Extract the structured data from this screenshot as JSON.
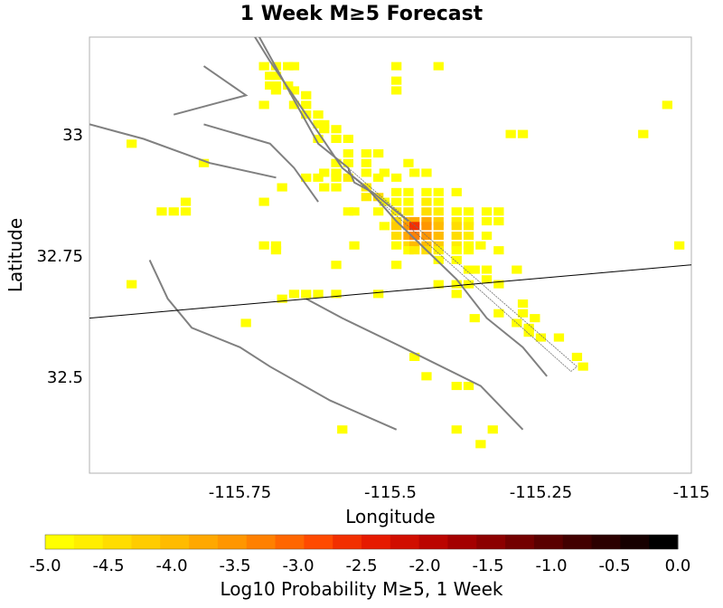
{
  "chart_data": {
    "type": "heatmap",
    "title": "1 Week M≥5 Forecast",
    "xlabel": "Longitude",
    "ylabel": "Latitude",
    "xlim": [
      -116.0,
      -115.0
    ],
    "ylim": [
      32.3,
      33.2
    ],
    "xticks": [
      -115.75,
      -115.5,
      -115.25,
      -115.0
    ],
    "xtick_labels": [
      "-115.75",
      "-115.5",
      "-115.25",
      "-115"
    ],
    "yticks": [
      33.0,
      32.75,
      32.5
    ],
    "ytick_labels": [
      "33",
      "32.75",
      "32.5"
    ],
    "colorbar": {
      "label": "Log10 Probability M≥5, 1 Week",
      "min": -5.0,
      "max": 0.0,
      "ticks": [
        -5.0,
        -4.5,
        -4.0,
        -3.5,
        -3.0,
        -2.5,
        -2.0,
        -1.5,
        -1.0,
        -0.5,
        0.0
      ],
      "tick_labels": [
        "-5.0",
        "-4.5",
        "-4.0",
        "-3.5",
        "-3.0",
        "-2.5",
        "-2.0",
        "-1.5",
        "-1.0",
        "-0.5",
        "0.0"
      ],
      "colors": [
        "#ffff00",
        "#ffee00",
        "#ffdd00",
        "#ffcc00",
        "#ffbb00",
        "#ffa800",
        "#ff9600",
        "#ff8000",
        "#ff6600",
        "#ff4a00",
        "#f22f00",
        "#e61a00",
        "#d10e00",
        "#bb0500",
        "#a40000",
        "#8c0000",
        "#730000",
        "#5a0000",
        "#420000",
        "#2c0000",
        "#160000",
        "#000000"
      ]
    },
    "cell_size_deg": 0.017,
    "cells": [
      [
        -115.71,
        33.14,
        -4.8
      ],
      [
        -115.69,
        33.14,
        -4.8
      ],
      [
        -115.67,
        33.14,
        -4.8
      ],
      [
        -115.66,
        33.14,
        -4.8
      ],
      [
        -115.49,
        33.14,
        -4.9
      ],
      [
        -115.42,
        33.14,
        -4.9
      ],
      [
        -115.7,
        33.12,
        -4.8
      ],
      [
        -115.69,
        33.12,
        -4.8
      ],
      [
        -115.49,
        33.11,
        -4.9
      ],
      [
        -115.49,
        33.09,
        -4.9
      ],
      [
        -115.7,
        33.1,
        -4.8
      ],
      [
        -115.69,
        33.1,
        -4.8
      ],
      [
        -115.67,
        33.1,
        -4.8
      ],
      [
        -115.69,
        33.09,
        -4.8
      ],
      [
        -115.66,
        33.09,
        -4.8
      ],
      [
        -115.64,
        33.08,
        -4.8
      ],
      [
        -115.71,
        33.06,
        -4.9
      ],
      [
        -115.66,
        33.06,
        -4.8
      ],
      [
        -115.64,
        33.06,
        -4.8
      ],
      [
        -115.04,
        33.06,
        -4.9
      ],
      [
        -115.64,
        33.04,
        -4.8
      ],
      [
        -115.62,
        33.04,
        -4.8
      ],
      [
        -115.61,
        33.02,
        -4.8
      ],
      [
        -115.62,
        33.02,
        -4.8
      ],
      [
        -115.59,
        33.01,
        -4.8
      ],
      [
        -115.61,
        33.01,
        -4.8
      ],
      [
        -115.3,
        33.0,
        -4.9
      ],
      [
        -115.28,
        33.0,
        -4.9
      ],
      [
        -115.08,
        33.0,
        -4.9
      ],
      [
        -115.62,
        32.99,
        -4.8
      ],
      [
        -115.59,
        32.99,
        -4.8
      ],
      [
        -115.57,
        32.99,
        -4.8
      ],
      [
        -115.93,
        32.98,
        -4.9
      ],
      [
        -115.57,
        32.96,
        -4.8
      ],
      [
        -115.54,
        32.96,
        -4.8
      ],
      [
        -115.52,
        32.96,
        -4.8
      ],
      [
        -115.59,
        32.94,
        -4.8
      ],
      [
        -115.57,
        32.94,
        -4.8
      ],
      [
        -115.54,
        32.94,
        -4.8
      ],
      [
        -115.47,
        32.94,
        -4.8
      ],
      [
        -115.81,
        32.94,
        -4.9
      ],
      [
        -115.61,
        32.92,
        -4.8
      ],
      [
        -115.59,
        32.92,
        -4.8
      ],
      [
        -115.54,
        32.92,
        -4.8
      ],
      [
        -115.51,
        32.92,
        -4.8
      ],
      [
        -115.44,
        32.92,
        -4.8
      ],
      [
        -115.46,
        32.92,
        -4.8
      ],
      [
        -115.64,
        32.91,
        -4.8
      ],
      [
        -115.62,
        32.91,
        -4.8
      ],
      [
        -115.59,
        32.91,
        -4.8
      ],
      [
        -115.57,
        32.91,
        -4.7
      ],
      [
        -115.52,
        32.91,
        -4.8
      ],
      [
        -115.49,
        32.91,
        -4.8
      ],
      [
        -115.68,
        32.89,
        -4.9
      ],
      [
        -115.61,
        32.89,
        -4.8
      ],
      [
        -115.59,
        32.89,
        -4.8
      ],
      [
        -115.54,
        32.89,
        -4.6
      ],
      [
        -115.49,
        32.88,
        -4.8
      ],
      [
        -115.47,
        32.88,
        -4.8
      ],
      [
        -115.44,
        32.88,
        -4.8
      ],
      [
        -115.42,
        32.88,
        -4.8
      ],
      [
        -115.39,
        32.88,
        -4.8
      ],
      [
        -115.54,
        32.87,
        -4.6
      ],
      [
        -115.52,
        32.87,
        -4.5
      ],
      [
        -115.51,
        32.86,
        -4.8
      ],
      [
        -115.49,
        32.86,
        -4.8
      ],
      [
        -115.47,
        32.86,
        -4.8
      ],
      [
        -115.44,
        32.86,
        -4.7
      ],
      [
        -115.42,
        32.86,
        -4.8
      ],
      [
        -115.71,
        32.86,
        -4.9
      ],
      [
        -115.84,
        32.86,
        -4.9
      ],
      [
        -115.57,
        32.84,
        -4.8
      ],
      [
        -115.56,
        32.84,
        -4.8
      ],
      [
        -115.52,
        32.84,
        -4.8
      ],
      [
        -115.47,
        32.84,
        -4.6
      ],
      [
        -115.49,
        32.84,
        -4.6
      ],
      [
        -115.44,
        32.84,
        -4.5
      ],
      [
        -115.42,
        32.84,
        -4.7
      ],
      [
        -115.39,
        32.84,
        -4.8
      ],
      [
        -115.37,
        32.84,
        -4.8
      ],
      [
        -115.34,
        32.84,
        -4.8
      ],
      [
        -115.32,
        32.84,
        -4.8
      ],
      [
        -115.86,
        32.84,
        -4.9
      ],
      [
        -115.88,
        32.84,
        -4.9
      ],
      [
        -115.84,
        32.84,
        -4.9
      ],
      [
        -115.49,
        32.82,
        -4.4
      ],
      [
        -115.47,
        32.82,
        -4.0
      ],
      [
        -115.46,
        32.82,
        -3.8
      ],
      [
        -115.44,
        32.82,
        -3.8
      ],
      [
        -115.42,
        32.82,
        -4.3
      ],
      [
        -115.39,
        32.82,
        -4.6
      ],
      [
        -115.37,
        32.82,
        -4.8
      ],
      [
        -115.34,
        32.82,
        -4.8
      ],
      [
        -115.32,
        32.82,
        -4.8
      ],
      [
        -115.51,
        32.81,
        -4.8
      ],
      [
        -115.49,
        32.81,
        -4.3
      ],
      [
        -115.47,
        32.81,
        -3.6
      ],
      [
        -115.46,
        32.81,
        -2.7
      ],
      [
        -115.44,
        32.81,
        -3.5
      ],
      [
        -115.42,
        32.81,
        -4.0
      ],
      [
        -115.39,
        32.81,
        -4.5
      ],
      [
        -115.37,
        32.81,
        -4.7
      ],
      [
        -115.49,
        32.79,
        -4.5
      ],
      [
        -115.47,
        32.79,
        -3.8
      ],
      [
        -115.46,
        32.79,
        -3.2
      ],
      [
        -115.44,
        32.79,
        -3.5
      ],
      [
        -115.42,
        32.79,
        -4.0
      ],
      [
        -115.39,
        32.79,
        -4.4
      ],
      [
        -115.37,
        32.79,
        -4.7
      ],
      [
        -115.34,
        32.79,
        -4.8
      ],
      [
        -115.49,
        32.77,
        -4.8
      ],
      [
        -115.47,
        32.77,
        -4.4
      ],
      [
        -115.46,
        32.77,
        -4.0
      ],
      [
        -115.44,
        32.77,
        -4.0
      ],
      [
        -115.42,
        32.77,
        -4.3
      ],
      [
        -115.39,
        32.77,
        -4.7
      ],
      [
        -115.37,
        32.77,
        -4.8
      ],
      [
        -115.35,
        32.77,
        -4.9
      ],
      [
        -115.71,
        32.77,
        -4.9
      ],
      [
        -115.69,
        32.77,
        -4.9
      ],
      [
        -115.56,
        32.77,
        -4.9
      ],
      [
        -115.02,
        32.77,
        -4.9
      ],
      [
        -115.69,
        32.76,
        -4.9
      ],
      [
        -115.47,
        32.76,
        -4.8
      ],
      [
        -115.46,
        32.76,
        -4.6
      ],
      [
        -115.44,
        32.76,
        -4.5
      ],
      [
        -115.42,
        32.76,
        -4.6
      ],
      [
        -115.39,
        32.76,
        -4.8
      ],
      [
        -115.37,
        32.76,
        -4.8
      ],
      [
        -115.32,
        32.76,
        -4.9
      ],
      [
        -115.59,
        32.73,
        -4.9
      ],
      [
        -115.49,
        32.73,
        -4.9
      ],
      [
        -115.42,
        32.74,
        -4.8
      ],
      [
        -115.39,
        32.74,
        -4.8
      ],
      [
        -115.37,
        32.72,
        -4.8
      ],
      [
        -115.36,
        32.72,
        -4.9
      ],
      [
        -115.34,
        32.72,
        -4.9
      ],
      [
        -115.29,
        32.72,
        -4.9
      ],
      [
        -115.93,
        32.69,
        -4.9
      ],
      [
        -115.42,
        32.69,
        -4.9
      ],
      [
        -115.39,
        32.69,
        -4.9
      ],
      [
        -115.37,
        32.69,
        -4.9
      ],
      [
        -115.34,
        32.7,
        -4.9
      ],
      [
        -115.32,
        32.69,
        -4.9
      ],
      [
        -115.66,
        32.67,
        -4.9
      ],
      [
        -115.64,
        32.67,
        -4.9
      ],
      [
        -115.62,
        32.67,
        -4.9
      ],
      [
        -115.59,
        32.67,
        -4.9
      ],
      [
        -115.52,
        32.67,
        -4.9
      ],
      [
        -115.39,
        32.67,
        -4.9
      ],
      [
        -115.28,
        32.65,
        -4.9
      ],
      [
        -115.68,
        32.66,
        -4.9
      ],
      [
        -115.32,
        32.63,
        -4.9
      ],
      [
        -115.36,
        32.62,
        -4.9
      ],
      [
        -115.28,
        32.63,
        -4.9
      ],
      [
        -115.26,
        32.62,
        -4.9
      ],
      [
        -115.74,
        32.61,
        -4.9
      ],
      [
        -115.29,
        32.61,
        -4.9
      ],
      [
        -115.27,
        32.6,
        -4.9
      ],
      [
        -115.27,
        32.59,
        -4.9
      ],
      [
        -115.25,
        32.58,
        -4.9
      ],
      [
        -115.22,
        32.58,
        -4.9
      ],
      [
        -115.46,
        32.54,
        -4.9
      ],
      [
        -115.44,
        32.5,
        -4.9
      ],
      [
        -115.19,
        32.54,
        -4.9
      ],
      [
        -115.18,
        32.52,
        -4.9
      ],
      [
        -115.39,
        32.48,
        -4.9
      ],
      [
        -115.37,
        32.48,
        -4.9
      ],
      [
        -115.39,
        32.39,
        -4.9
      ],
      [
        -115.33,
        32.39,
        -4.9
      ],
      [
        -115.35,
        32.36,
        -4.9
      ],
      [
        -115.58,
        32.39,
        -4.9
      ]
    ],
    "faults": [
      [
        [
          -115.74,
          33.25
        ],
        [
          -115.66,
          33.07
        ],
        [
          -115.62,
          32.98
        ],
        [
          -115.57,
          32.93
        ]
      ],
      [
        [
          -115.75,
          33.25
        ],
        [
          -115.7,
          33.15
        ],
        [
          -115.64,
          33.04
        ],
        [
          -115.58,
          32.93
        ],
        [
          -115.54,
          32.89
        ],
        [
          -115.49,
          32.82
        ],
        [
          -115.44,
          32.76
        ],
        [
          -115.39,
          32.7
        ],
        [
          -115.34,
          32.62
        ],
        [
          -115.28,
          32.56
        ],
        [
          -115.24,
          32.5
        ]
      ],
      [
        [
          -115.57,
          32.93
        ],
        [
          -115.56,
          32.9
        ],
        [
          -115.53,
          32.88
        ],
        [
          -115.47,
          32.82
        ]
      ],
      [
        [
          -115.86,
          33.04
        ],
        [
          -115.74,
          33.08
        ],
        [
          -115.81,
          33.14
        ]
      ],
      [
        [
          -115.81,
          33.02
        ],
        [
          -115.7,
          32.98
        ],
        [
          -115.66,
          32.93
        ],
        [
          -115.62,
          32.86
        ]
      ],
      [
        [
          -116.0,
          33.02
        ],
        [
          -115.91,
          32.99
        ],
        [
          -115.8,
          32.94
        ],
        [
          -115.69,
          32.91
        ]
      ],
      [
        [
          -115.9,
          32.74
        ],
        [
          -115.87,
          32.66
        ],
        [
          -115.83,
          32.6
        ],
        [
          -115.75,
          32.56
        ],
        [
          -115.7,
          32.52
        ],
        [
          -115.6,
          32.45
        ],
        [
          -115.49,
          32.39
        ]
      ],
      [
        [
          -115.64,
          32.66
        ],
        [
          -115.58,
          32.62
        ],
        [
          -115.48,
          32.56
        ],
        [
          -115.35,
          32.48
        ],
        [
          -115.28,
          32.39
        ]
      ]
    ],
    "border": [
      [
        -116.0,
        32.62
      ],
      [
        -115.0,
        32.73
      ]
    ],
    "rupture_box": [
      [
        -115.57,
        32.93
      ],
      [
        -115.19,
        32.52
      ],
      [
        -115.2,
        32.51
      ],
      [
        -115.57,
        32.92
      ]
    ]
  }
}
